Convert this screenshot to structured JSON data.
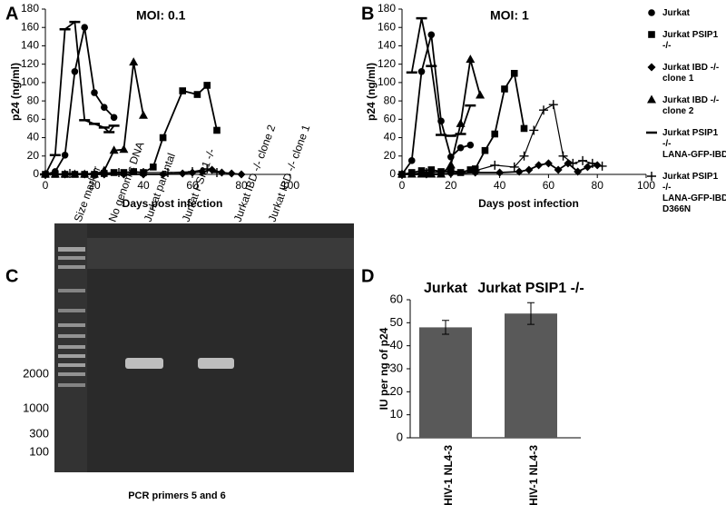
{
  "chart_data": [
    {
      "type": "line",
      "panel_label": "A",
      "title": "MOI: 0.1",
      "x_label": "Days post infection",
      "y_label": "p24 (ng/ml)",
      "xlim": [
        0,
        100
      ],
      "xticks": [
        0,
        20,
        40,
        60,
        80,
        100
      ],
      "ylim": [
        0,
        180
      ],
      "yticks": [
        0,
        20,
        40,
        60,
        80,
        100,
        120,
        140,
        160,
        180
      ],
      "series": [
        {
          "marker": "circle",
          "color": "#000000",
          "x": [
            0,
            4,
            8,
            12,
            16,
            20,
            24,
            28
          ],
          "values": [
            0,
            3,
            21,
            112,
            160,
            89,
            73,
            62
          ]
        },
        {
          "marker": "square",
          "color": "#000000",
          "x": [
            0,
            4,
            8,
            12,
            16,
            20,
            24,
            28,
            32,
            36,
            40,
            44,
            48,
            56,
            62,
            66,
            70
          ],
          "values": [
            0,
            0,
            0,
            0,
            0,
            0,
            1,
            2,
            2,
            3,
            2,
            8,
            40,
            91,
            87,
            97,
            48
          ]
        },
        {
          "marker": "diamond",
          "color": "#000000",
          "x": [
            0,
            8,
            16,
            24,
            32,
            40,
            48,
            56,
            60,
            64,
            68,
            72,
            76,
            80
          ],
          "values": [
            0,
            0,
            0,
            0,
            0,
            0,
            0,
            1,
            2,
            3,
            5,
            2,
            1,
            0
          ]
        },
        {
          "marker": "triangle",
          "color": "#000000",
          "x": [
            0,
            4,
            8,
            12,
            16,
            20,
            24,
            28,
            32,
            36,
            40
          ],
          "values": [
            0,
            0,
            0,
            0,
            0,
            0,
            4,
            26,
            27,
            122,
            64
          ]
        },
        {
          "marker": "dash",
          "color": "#000000",
          "x": [
            0,
            4,
            8,
            12,
            16,
            20,
            24,
            26,
            28
          ],
          "values": [
            0,
            21,
            158,
            166,
            59,
            55,
            51,
            46,
            53
          ]
        },
        {
          "marker": "plus",
          "color": "#000000",
          "x": [
            0,
            10,
            20,
            30,
            40,
            50,
            60,
            66,
            70
          ],
          "values": [
            0,
            1,
            1,
            2,
            2,
            2,
            3,
            6,
            2
          ]
        }
      ]
    },
    {
      "type": "line",
      "panel_label": "B",
      "title": "MOI: 1",
      "x_label": "Days post infection",
      "y_label": "p24 (ng/ml)",
      "xlim": [
        0,
        100
      ],
      "xticks": [
        0,
        20,
        40,
        60,
        80,
        100
      ],
      "ylim": [
        0,
        180
      ],
      "yticks": [
        0,
        20,
        40,
        60,
        80,
        100,
        120,
        140,
        160,
        180
      ],
      "series": [
        {
          "name": "Jurkat",
          "marker": "circle",
          "color": "#000000",
          "x": [
            0,
            4,
            8,
            12,
            16,
            20,
            24,
            28
          ],
          "values": [
            0,
            15,
            112,
            152,
            58,
            19,
            29,
            32
          ]
        },
        {
          "name": "Jurkat PSIP1 -/-",
          "marker": "square",
          "color": "#000000",
          "x": [
            0,
            4,
            8,
            12,
            16,
            20,
            24,
            28,
            30,
            34,
            38,
            42,
            46,
            50
          ],
          "values": [
            0,
            2,
            4,
            5,
            3,
            4,
            2,
            5,
            6,
            26,
            44,
            93,
            110,
            50
          ]
        },
        {
          "name": "Jurkat IBD -/- clone 1",
          "marker": "diamond",
          "color": "#000000",
          "x": [
            0,
            10,
            20,
            30,
            40,
            48,
            52,
            56,
            60,
            64,
            68,
            72,
            76,
            80
          ],
          "values": [
            0,
            0,
            1,
            2,
            2,
            3,
            5,
            10,
            12,
            5,
            12,
            3,
            8,
            10
          ]
        },
        {
          "name": "Jurkat IBD -/- clone 2",
          "marker": "triangle",
          "color": "#000000",
          "x": [
            0,
            4,
            8,
            12,
            16,
            20,
            24,
            28,
            32
          ],
          "values": [
            0,
            0,
            0,
            0,
            0,
            10,
            55,
            125,
            86
          ]
        },
        {
          "name": "Jurkat PSIP1 -/- LANA-GFP-IBD",
          "marker": "dash",
          "color": "#000000",
          "x": [
            4,
            8,
            12,
            16,
            20,
            24,
            28
          ],
          "values": [
            111,
            170,
            118,
            43,
            42,
            44,
            75
          ]
        },
        {
          "name": "Jurkat PSIP1 -/- LANA-GFP-IBD D366N",
          "marker": "plus",
          "color": "#000000",
          "x": [
            0,
            10,
            20,
            30,
            38,
            46,
            50,
            54,
            58,
            62,
            66,
            70,
            74,
            78,
            82
          ],
          "values": [
            0,
            2,
            3,
            4,
            10,
            8,
            20,
            48,
            70,
            76,
            20,
            12,
            15,
            12,
            9
          ]
        }
      ]
    },
    {
      "type": "bar",
      "panel_label": "D",
      "y_label": "IU per ng of p24",
      "group_labels": [
        "Jurkat",
        "Jurkat PSIP1 -/-"
      ],
      "categories": [
        "HIV-1 NL4-3",
        "HIV-1 NL4-3"
      ],
      "values": [
        48,
        54
      ],
      "errors": [
        3,
        4.7
      ],
      "color": "#595959",
      "ylim": [
        0,
        60
      ],
      "yticks": [
        0,
        10,
        20,
        30,
        40,
        50,
        60
      ]
    }
  ],
  "gel": {
    "panel_label": "C",
    "lanes": [
      "Size marker",
      "No genomic DNA",
      "Jurkat parental",
      "Jurkat PSIP1 -/-",
      "Jurkat IBD -/- clone 2",
      "Jurkat IBD -/- clone 1"
    ],
    "size_labels": [
      "2000",
      "1000",
      "300",
      "100"
    ],
    "caption": "PCR primers 5 and 6"
  }
}
